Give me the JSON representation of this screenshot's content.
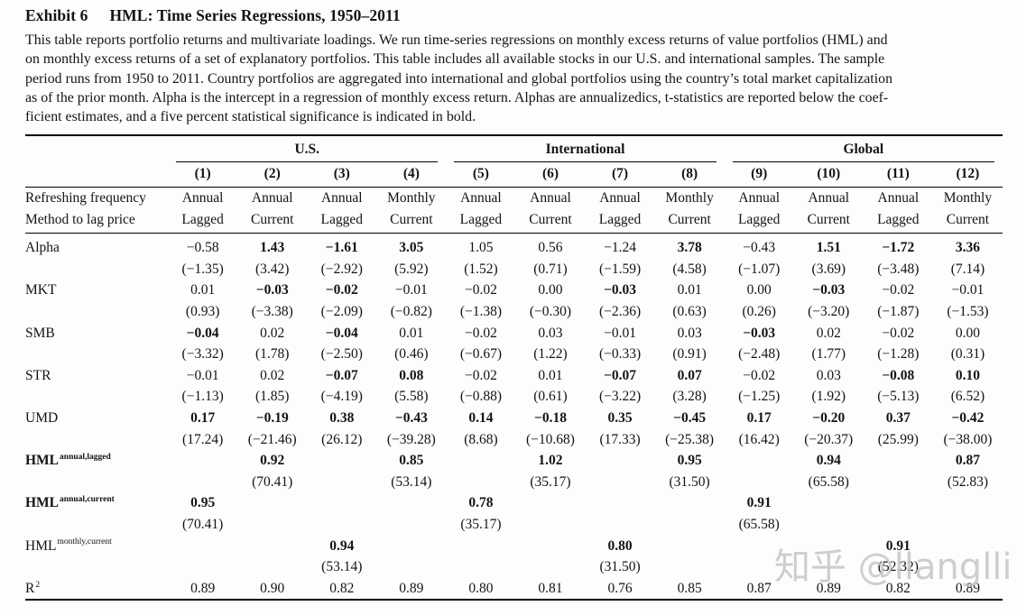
{
  "header": {
    "exhibit_label": "Exhibit 6",
    "title": "HML: Time Series Regressions, 1950–2011"
  },
  "description": {
    "lines": [
      "This table reports portfolio returns and multivariate loadings. We run time-series regressions on monthly excess returns of value portfolios (HML) and",
      "on monthly excess returns of a set of explanatory portfolios. This table includes all available stocks in our U.S. and international samples. The sample",
      "period runs from 1950 to 2011. Country portfolios are aggregated into international and global portfolios using the country’s total market capitalization",
      "as of the prior month. Alpha is the intercept in a regression of monthly excess return. Alphas are annualizedics, t-statistics are reported below the coef-",
      "ficient estimates, and a five percent statistical significance is indicated in bold."
    ]
  },
  "table": {
    "groups": [
      {
        "label": "U.S."
      },
      {
        "label": "International"
      },
      {
        "label": "Global"
      }
    ],
    "col_numbers": [
      "(1)",
      "(2)",
      "(3)",
      "(4)",
      "(5)",
      "(6)",
      "(7)",
      "(8)",
      "(9)",
      "(10)",
      "(11)",
      "(12)"
    ],
    "spec_rows": [
      {
        "label": "Refreshing frequency",
        "cells": [
          "Annual",
          "Annual",
          "Annual",
          "Monthly",
          "Annual",
          "Annual",
          "Annual",
          "Monthly",
          "Annual",
          "Annual",
          "Annual",
          "Monthly"
        ]
      },
      {
        "label": "Method to lag price",
        "cells": [
          "Lagged",
          "Current",
          "Lagged",
          "Current",
          "Lagged",
          "Current",
          "Lagged",
          "Current",
          "Lagged",
          "Current",
          "Lagged",
          "Current"
        ]
      }
    ],
    "body_rows": [
      {
        "label": "Alpha",
        "sup": "",
        "bold_label": false,
        "est": [
          "−0.58",
          "1.43",
          "−1.61",
          "3.05",
          "1.05",
          "0.56",
          "−1.24",
          "3.78",
          "−0.43",
          "1.51",
          "−1.72",
          "3.36"
        ],
        "sig": [
          0,
          1,
          1,
          1,
          0,
          0,
          0,
          1,
          0,
          1,
          1,
          1
        ],
        "t": [
          "(−1.35)",
          "(3.42)",
          "(−2.92)",
          "(5.92)",
          "(1.52)",
          "(0.71)",
          "(−1.59)",
          "(4.58)",
          "(−1.07)",
          "(3.69)",
          "(−3.48)",
          "(7.14)"
        ]
      },
      {
        "label": "MKT",
        "sup": "",
        "bold_label": false,
        "est": [
          "0.01",
          "−0.03",
          "−0.02",
          "−0.01",
          "−0.02",
          "0.00",
          "−0.03",
          "0.01",
          "0.00",
          "−0.03",
          "−0.02",
          "−0.01"
        ],
        "sig": [
          0,
          1,
          1,
          0,
          0,
          0,
          1,
          0,
          0,
          1,
          0,
          0
        ],
        "t": [
          "(0.93)",
          "(−3.38)",
          "(−2.09)",
          "(−0.82)",
          "(−1.38)",
          "(−0.30)",
          "(−2.36)",
          "(0.63)",
          "(0.26)",
          "(−3.20)",
          "(−1.87)",
          "(−1.53)"
        ]
      },
      {
        "label": "SMB",
        "sup": "",
        "bold_label": false,
        "est": [
          "−0.04",
          "0.02",
          "−0.04",
          "0.01",
          "−0.02",
          "0.03",
          "−0.01",
          "0.03",
          "−0.03",
          "0.02",
          "−0.02",
          "0.00"
        ],
        "sig": [
          1,
          0,
          1,
          0,
          0,
          0,
          0,
          0,
          1,
          0,
          0,
          0
        ],
        "t": [
          "(−3.32)",
          "(1.78)",
          "(−2.50)",
          "(0.46)",
          "(−0.67)",
          "(1.22)",
          "(−0.33)",
          "(0.91)",
          "(−2.48)",
          "(1.77)",
          "(−1.28)",
          "(0.31)"
        ]
      },
      {
        "label": "STR",
        "sup": "",
        "bold_label": false,
        "est": [
          "−0.01",
          "0.02",
          "−0.07",
          "0.08",
          "−0.02",
          "0.01",
          "−0.07",
          "0.07",
          "−0.02",
          "0.03",
          "−0.08",
          "0.10"
        ],
        "sig": [
          0,
          0,
          1,
          1,
          0,
          0,
          1,
          1,
          0,
          0,
          1,
          1
        ],
        "t": [
          "(−1.13)",
          "(1.85)",
          "(−4.19)",
          "(5.58)",
          "(−0.88)",
          "(0.61)",
          "(−3.22)",
          "(3.28)",
          "(−1.25)",
          "(1.92)",
          "(−5.13)",
          "(6.52)"
        ]
      },
      {
        "label": "UMD",
        "sup": "",
        "bold_label": false,
        "est": [
          "0.17",
          "−0.19",
          "0.38",
          "−0.43",
          "0.14",
          "−0.18",
          "0.35",
          "−0.45",
          "0.17",
          "−0.20",
          "0.37",
          "−0.42"
        ],
        "sig": [
          1,
          1,
          1,
          1,
          1,
          1,
          1,
          1,
          1,
          1,
          1,
          1
        ],
        "t": [
          "(17.24)",
          "(−21.46)",
          "(26.12)",
          "(−39.28)",
          "(8.68)",
          "(−10.68)",
          "(17.33)",
          "(−25.38)",
          "(16.42)",
          "(−20.37)",
          "(25.99)",
          "(−38.00)"
        ]
      },
      {
        "label": "HML",
        "sup": "annual,lagged",
        "bold_label": true,
        "est": [
          "",
          "0.92",
          "",
          "0.85",
          "",
          "1.02",
          "",
          "0.95",
          "",
          "0.94",
          "",
          "0.87"
        ],
        "sig": [
          0,
          1,
          0,
          1,
          0,
          1,
          0,
          1,
          0,
          1,
          0,
          1
        ],
        "t": [
          "",
          "(70.41)",
          "",
          "(53.14)",
          "",
          "(35.17)",
          "",
          "(31.50)",
          "",
          "(65.58)",
          "",
          "(52.83)"
        ]
      },
      {
        "label": "HML",
        "sup": "annual,current",
        "bold_label": true,
        "est": [
          "0.95",
          "",
          "",
          "",
          "0.78",
          "",
          "",
          "",
          "0.91",
          "",
          "",
          ""
        ],
        "sig": [
          1,
          0,
          0,
          0,
          1,
          0,
          0,
          0,
          1,
          0,
          0,
          0
        ],
        "t": [
          "(70.41)",
          "",
          "",
          "",
          "(35.17)",
          "",
          "",
          "",
          "(65.58)",
          "",
          "",
          ""
        ]
      },
      {
        "label": "HML",
        "sup": "monthly,current",
        "bold_label": false,
        "est": [
          "",
          "",
          "0.94",
          "",
          "",
          "",
          "0.80",
          "",
          "",
          "",
          "0.91",
          ""
        ],
        "sig": [
          0,
          0,
          1,
          0,
          0,
          0,
          1,
          0,
          0,
          0,
          1,
          0
        ],
        "t": [
          "",
          "",
          "(53.14)",
          "",
          "",
          "",
          "(31.50)",
          "",
          "",
          "",
          "(52.32)",
          ""
        ]
      },
      {
        "label": "R",
        "sup": "2",
        "bold_label": false,
        "est": [
          "0.89",
          "0.90",
          "0.82",
          "0.89",
          "0.80",
          "0.81",
          "0.76",
          "0.85",
          "0.87",
          "0.89",
          "0.82",
          "0.89"
        ],
        "sig": [
          0,
          0,
          0,
          0,
          0,
          0,
          0,
          0,
          0,
          0,
          0,
          0
        ],
        "t": null
      }
    ]
  },
  "watermark": {
    "text": "知乎 @llanglli"
  }
}
